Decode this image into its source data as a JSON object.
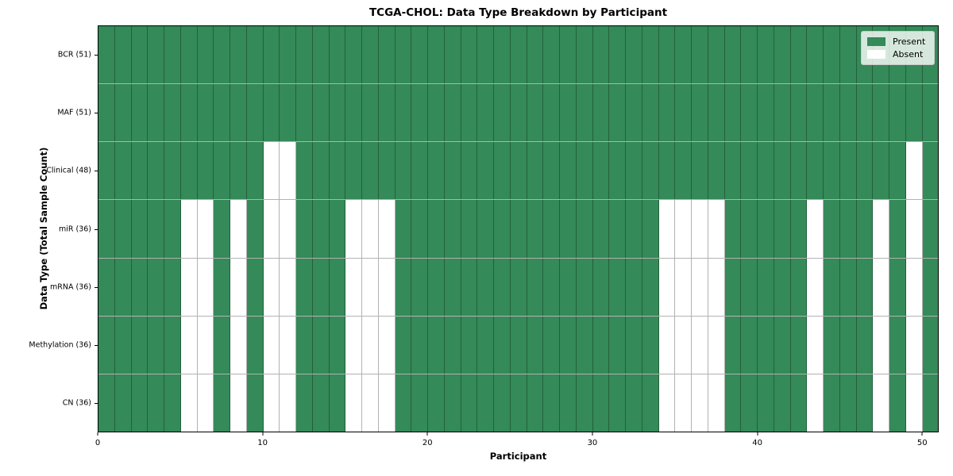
{
  "chart_data": {
    "type": "heatmap",
    "title": "TCGA-CHOL: Data Type Breakdown by Participant",
    "xlabel": "Participant",
    "ylabel": "Data Type (Total Sample Count)",
    "n_participants": 51,
    "x_range": [
      0,
      51
    ],
    "x_tick_values": [
      0,
      10,
      20,
      30,
      40,
      50
    ],
    "grid": "on",
    "legend_position": "upper-right",
    "colors": {
      "present": "#348a58",
      "absent": "#ffffff",
      "grid_line": "rgba(0,0,0,0.3)",
      "plot_border": "#000000"
    },
    "legend": [
      {
        "label": "Present",
        "color": "#348a58"
      },
      {
        "label": "Absent",
        "color": "#ffffff"
      }
    ],
    "rows": [
      {
        "label": "BCR (51)",
        "present_count": 51,
        "absent_participants": []
      },
      {
        "label": "MAF (51)",
        "present_count": 51,
        "absent_participants": []
      },
      {
        "label": "Clinical (48)",
        "present_count": 48,
        "absent_participants": [
          10,
          11,
          49
        ]
      },
      {
        "label": "miR (36)",
        "present_count": 36,
        "absent_participants": [
          5,
          6,
          8,
          10,
          11,
          15,
          16,
          17,
          34,
          35,
          36,
          37,
          43,
          47,
          49
        ]
      },
      {
        "label": "mRNA (36)",
        "present_count": 36,
        "absent_participants": [
          5,
          6,
          8,
          10,
          11,
          15,
          16,
          17,
          34,
          35,
          36,
          37,
          43,
          47,
          49
        ]
      },
      {
        "label": "Methylation (36)",
        "present_count": 36,
        "absent_participants": [
          5,
          6,
          8,
          10,
          11,
          15,
          16,
          17,
          34,
          35,
          36,
          37,
          43,
          47,
          49
        ]
      },
      {
        "label": "CN (36)",
        "present_count": 36,
        "absent_participants": [
          5,
          6,
          8,
          10,
          11,
          15,
          16,
          17,
          34,
          35,
          36,
          37,
          43,
          47,
          49
        ]
      }
    ]
  }
}
